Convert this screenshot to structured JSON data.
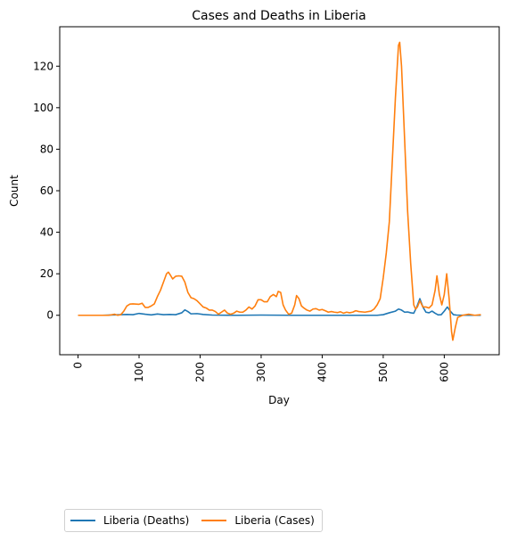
{
  "chart_data": {
    "type": "line",
    "title": "Cases and Deaths in Liberia",
    "xlabel": "Day",
    "ylabel": "Count",
    "xlim": [
      -30,
      690
    ],
    "ylim": [
      -19,
      139
    ],
    "xticks": [
      0,
      100,
      200,
      300,
      400,
      500,
      600
    ],
    "yticks": [
      0,
      20,
      40,
      60,
      80,
      100,
      120
    ],
    "xtick_rotation": 90,
    "grid": false,
    "legend": "bottom-left, below chart",
    "series": [
      {
        "name": "Liberia (Deaths)",
        "color": "#1f77b4",
        "points": [
          [
            0,
            0
          ],
          [
            40,
            0
          ],
          [
            60,
            0.2
          ],
          [
            80,
            0.4
          ],
          [
            90,
            0.3
          ],
          [
            100,
            0.9
          ],
          [
            110,
            0.5
          ],
          [
            120,
            0.2
          ],
          [
            130,
            0.6
          ],
          [
            140,
            0.3
          ],
          [
            150,
            0.4
          ],
          [
            160,
            0.3
          ],
          [
            170,
            1.2
          ],
          [
            175,
            2.6
          ],
          [
            180,
            1.8
          ],
          [
            185,
            0.7
          ],
          [
            195,
            0.8
          ],
          [
            205,
            0.4
          ],
          [
            220,
            0.1
          ],
          [
            260,
            0
          ],
          [
            300,
            0.1
          ],
          [
            350,
            0
          ],
          [
            400,
            0
          ],
          [
            450,
            0
          ],
          [
            490,
            0
          ],
          [
            500,
            0.3
          ],
          [
            510,
            1.2
          ],
          [
            520,
            2.0
          ],
          [
            525,
            3.0
          ],
          [
            530,
            2.5
          ],
          [
            535,
            1.5
          ],
          [
            540,
            1.6
          ],
          [
            545,
            1.2
          ],
          [
            550,
            1.0
          ],
          [
            555,
            4.0
          ],
          [
            560,
            8.0
          ],
          [
            565,
            4.0
          ],
          [
            570,
            1.5
          ],
          [
            575,
            1.2
          ],
          [
            580,
            2.0
          ],
          [
            585,
            1.0
          ],
          [
            590,
            0.2
          ],
          [
            595,
            0.3
          ],
          [
            600,
            2.0
          ],
          [
            605,
            4.0
          ],
          [
            610,
            2.0
          ],
          [
            615,
            0.3
          ],
          [
            620,
            0.1
          ],
          [
            640,
            0
          ],
          [
            660,
            0
          ]
        ]
      },
      {
        "name": "Liberia (Cases)",
        "color": "#ff7f0e",
        "points": [
          [
            0,
            0
          ],
          [
            40,
            0
          ],
          [
            50,
            0
          ],
          [
            60,
            0.5
          ],
          [
            65,
            0
          ],
          [
            70,
            0.3
          ],
          [
            75,
            2
          ],
          [
            80,
            4.5
          ],
          [
            85,
            5.4
          ],
          [
            90,
            5.5
          ],
          [
            100,
            5.3
          ],
          [
            105,
            5.8
          ],
          [
            110,
            3.8
          ],
          [
            115,
            3.8
          ],
          [
            120,
            4.5
          ],
          [
            125,
            5.5
          ],
          [
            130,
            9
          ],
          [
            135,
            12
          ],
          [
            140,
            16
          ],
          [
            145,
            20
          ],
          [
            148,
            20.8
          ],
          [
            152,
            19
          ],
          [
            155,
            17.5
          ],
          [
            160,
            18.8
          ],
          [
            165,
            19
          ],
          [
            170,
            18.8
          ],
          [
            175,
            16
          ],
          [
            180,
            11
          ],
          [
            185,
            8.5
          ],
          [
            190,
            8
          ],
          [
            195,
            7
          ],
          [
            200,
            5.5
          ],
          [
            205,
            4
          ],
          [
            210,
            3.5
          ],
          [
            215,
            2.5
          ],
          [
            220,
            2.5
          ],
          [
            225,
            1.8
          ],
          [
            230,
            0.5
          ],
          [
            235,
            1.5
          ],
          [
            240,
            2.5
          ],
          [
            245,
            1
          ],
          [
            250,
            0.5
          ],
          [
            255,
            1
          ],
          [
            260,
            2
          ],
          [
            265,
            1.5
          ],
          [
            270,
            1.5
          ],
          [
            275,
            2.5
          ],
          [
            280,
            4
          ],
          [
            285,
            3
          ],
          [
            290,
            4.5
          ],
          [
            295,
            7.5
          ],
          [
            300,
            7.5
          ],
          [
            305,
            6.5
          ],
          [
            310,
            6.5
          ],
          [
            315,
            9
          ],
          [
            320,
            10
          ],
          [
            325,
            9
          ],
          [
            328,
            11.5
          ],
          [
            332,
            11
          ],
          [
            336,
            5
          ],
          [
            340,
            2.5
          ],
          [
            345,
            0.5
          ],
          [
            350,
            1
          ],
          [
            355,
            5
          ],
          [
            358,
            9.5
          ],
          [
            362,
            8
          ],
          [
            366,
            4.5
          ],
          [
            370,
            3.5
          ],
          [
            375,
            2.5
          ],
          [
            380,
            2
          ],
          [
            385,
            3
          ],
          [
            390,
            3.2
          ],
          [
            395,
            2.5
          ],
          [
            400,
            2.8
          ],
          [
            405,
            2.2
          ],
          [
            410,
            1.5
          ],
          [
            415,
            1.8
          ],
          [
            420,
            1.5
          ],
          [
            425,
            1.3
          ],
          [
            430,
            1.7
          ],
          [
            435,
            1
          ],
          [
            440,
            1.5
          ],
          [
            445,
            1.2
          ],
          [
            450,
            1.5
          ],
          [
            455,
            2.2
          ],
          [
            460,
            1.8
          ],
          [
            470,
            1.5
          ],
          [
            480,
            2
          ],
          [
            485,
            3
          ],
          [
            490,
            5
          ],
          [
            495,
            8
          ],
          [
            500,
            18
          ],
          [
            505,
            30
          ],
          [
            510,
            45
          ],
          [
            515,
            75
          ],
          [
            520,
            105
          ],
          [
            525,
            130
          ],
          [
            527,
            131.5
          ],
          [
            530,
            120
          ],
          [
            535,
            85
          ],
          [
            540,
            50
          ],
          [
            545,
            25
          ],
          [
            550,
            5
          ],
          [
            553,
            3
          ],
          [
            556,
            4
          ],
          [
            560,
            7
          ],
          [
            565,
            4
          ],
          [
            570,
            4
          ],
          [
            575,
            3.5
          ],
          [
            580,
            5
          ],
          [
            585,
            12
          ],
          [
            588,
            19
          ],
          [
            592,
            10
          ],
          [
            596,
            5
          ],
          [
            600,
            10
          ],
          [
            604,
            20
          ],
          [
            608,
            8
          ],
          [
            612,
            -8
          ],
          [
            614,
            -12
          ],
          [
            618,
            -6
          ],
          [
            622,
            -1
          ],
          [
            630,
            0
          ],
          [
            640,
            0.5
          ],
          [
            650,
            0
          ],
          [
            660,
            0.3
          ]
        ]
      }
    ]
  }
}
